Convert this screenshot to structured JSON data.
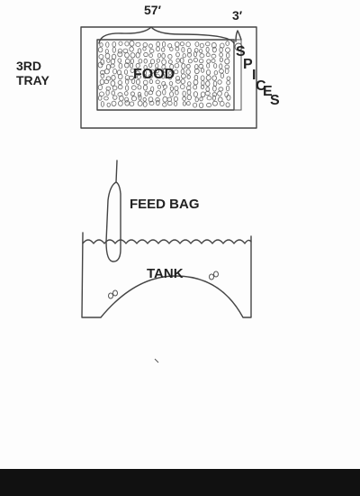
{
  "labels": {
    "tray_line1": "3RD",
    "tray_line2": "TRAY",
    "food": "FOOD",
    "spices_1": "S",
    "spices_2": "P",
    "spices_3": "I",
    "spices_4": "C",
    "spices_5": "E",
    "spices_6": "S",
    "dim_food": "57′",
    "dim_spices": "3′",
    "feed_bag": "FEED BAG",
    "tank": "TANK"
  },
  "colors": {
    "paper": "#fdfdfd",
    "ink": "#444444",
    "band": "#111111"
  }
}
